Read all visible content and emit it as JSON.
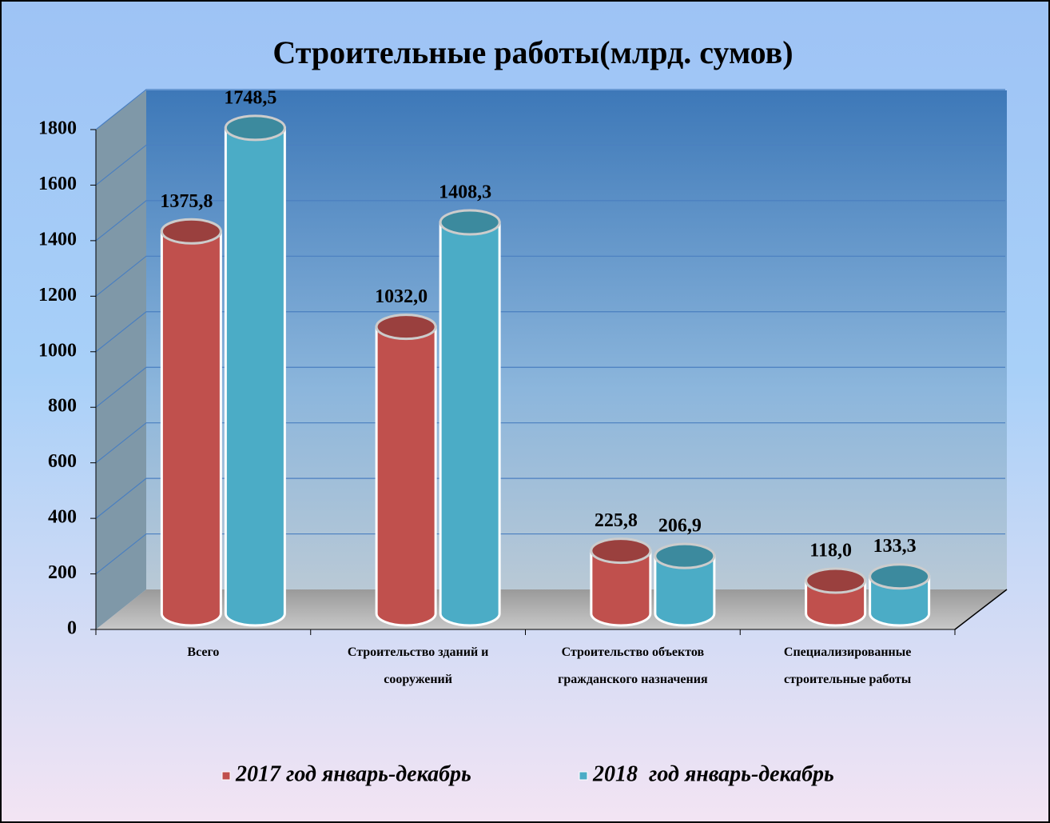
{
  "chart_data": {
    "type": "bar3d",
    "title": "Строительные работы(млрд. сумов)",
    "categories": [
      "Всего",
      "Строительство зданий и сооружений",
      "Строительство объектов гражданского назначения",
      "Специализированные строительные работы"
    ],
    "series": [
      {
        "name": "2017 год январь-декабрь",
        "color": "#c0504d",
        "values": [
          1375.8,
          1032.0,
          225.8,
          118.0
        ],
        "value_labels": [
          "1375,8",
          "1032,0",
          "225,8",
          "118,0"
        ]
      },
      {
        "name": "2018  год январь-декабрь",
        "color": "#4bacc6",
        "values": [
          1748.5,
          1408.3,
          206.9,
          133.3
        ],
        "value_labels": [
          "1748,5",
          "1408,3",
          "206,9",
          "133,3"
        ]
      }
    ],
    "ylim": [
      0,
      1800
    ],
    "yticks": [
      0,
      200,
      400,
      600,
      800,
      1000,
      1200,
      1400,
      1600,
      1800
    ],
    "grid": true,
    "legend": "bottom"
  }
}
